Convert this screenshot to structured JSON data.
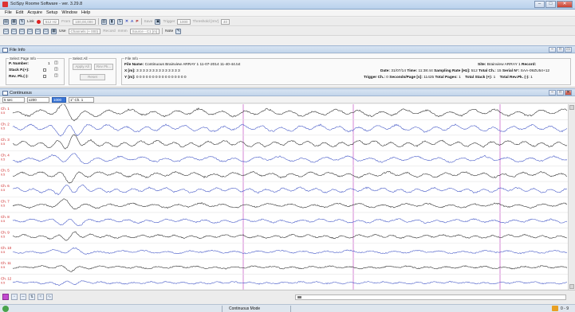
{
  "window": {
    "title": "SciSpy Roome Software - ver. 3.29.8",
    "buttons": [
      "–",
      "□",
      "✕"
    ]
  },
  "menu": [
    "File",
    "Edit",
    "Acquire",
    "Setup",
    "Window",
    "Help"
  ],
  "toolbar1": {
    "link_label": "Link",
    "rate_value": "512 Hz",
    "from_label": "From",
    "from_value": "100,00,000",
    "save_label": "Save",
    "trigger_label": "Trigger",
    "trigger_value": "1000",
    "threshold_label": "Threshold [mV]",
    "threshold_value": "40",
    "icon_letters": [
      "S",
      "A",
      "P"
    ]
  },
  "toolbar2": {
    "use_label": "Use",
    "channels_value": "Channels (+ 000)",
    "record_label": "Record",
    "record_value": "mmm",
    "source_label": "Source - C1 [m]",
    "note_label": "Note"
  },
  "file_info_panel": {
    "title": "File Info",
    "select_page_info": {
      "title": "Select Page Info",
      "p_number_label": "P. Number:",
      "p_number_value": "1",
      "stack_label": "Stack P.(+):",
      "rev_label": "Rev. Pk.(-):"
    },
    "select_all": {
      "title": "Select All",
      "apply_all": "Apply All",
      "rev_pk": "Rev Pk...",
      "reset": "Reset"
    },
    "file_info": {
      "title": "File Info",
      "file_name_label": "File Name:",
      "file_name_value": "Continuous Brainview ARRAY 1 11-07-2014 11-40-44.txt",
      "x_label": "X [m]:",
      "x_value": "3 3 3 3 3 3 3 3 3 3 3 3 3 3",
      "y_label": "Y [m]:",
      "y_value": "0 0 0 0 0 0 0 0 0 0 0 0 0 0 0 0",
      "date_label": "Date:",
      "date_value": "31/07/14",
      "time_label": "Time:",
      "time_value": "11:38:44",
      "sampling_label": "Sampling Rate [Hz]:",
      "sampling_value": "512",
      "total_ch_label": "Total Ch.:",
      "total_ch_value": "15",
      "serial_label": "Serial N°:",
      "serial_value": "SAA-09ZU54+12",
      "site_label": "Site:",
      "site_value": "Brainview ARRAY 1",
      "record_label": "Record:",
      "trigger_ch_label": "Trigger Ch.:",
      "trigger_ch_value": "0",
      "seconds_label": "Seconds/Page [s]:",
      "seconds_value": "11425",
      "total_pages_label": "Total Pages:",
      "total_pages_value": "1",
      "total_stack_label": "Total Stack (+):",
      "total_stack_value": "1",
      "total_rev_label": "Total Rev.Pk. (-):",
      "total_rev_value": "1"
    }
  },
  "continuous_panel": {
    "title": "Continuous",
    "time_select": "5 sec",
    "scale_select": "x200",
    "highlight_select": "1000",
    "channel_select": "1° Ch. 1",
    "channels": [
      {
        "label": "Ch. 1",
        "sub": "0.5"
      },
      {
        "label": "Ch. 2",
        "sub": "0.5"
      },
      {
        "label": "Ch. 3",
        "sub": "0.5"
      },
      {
        "label": "Ch. 4",
        "sub": "0.5"
      },
      {
        "label": "Ch. 5",
        "sub": "0.5"
      },
      {
        "label": "Ch. 6",
        "sub": "0.5"
      },
      {
        "label": "Ch. 7",
        "sub": "0.5"
      },
      {
        "label": "Ch. 8",
        "sub": "0.5"
      },
      {
        "label": "Ch. 9",
        "sub": "0.5"
      },
      {
        "label": "Ch. 10",
        "sub": "0.5"
      },
      {
        "label": "Ch. 11",
        "sub": "0.5"
      },
      {
        "label": "Ch. 12",
        "sub": "0.5"
      }
    ]
  },
  "status": {
    "mode": "Continuous Mode",
    "right": "0 - 9"
  },
  "colors": {
    "trace_black": "#222222",
    "trace_blue": "#3a4fc4",
    "marker": "#cc66cc",
    "label_red": "#cc2222"
  }
}
